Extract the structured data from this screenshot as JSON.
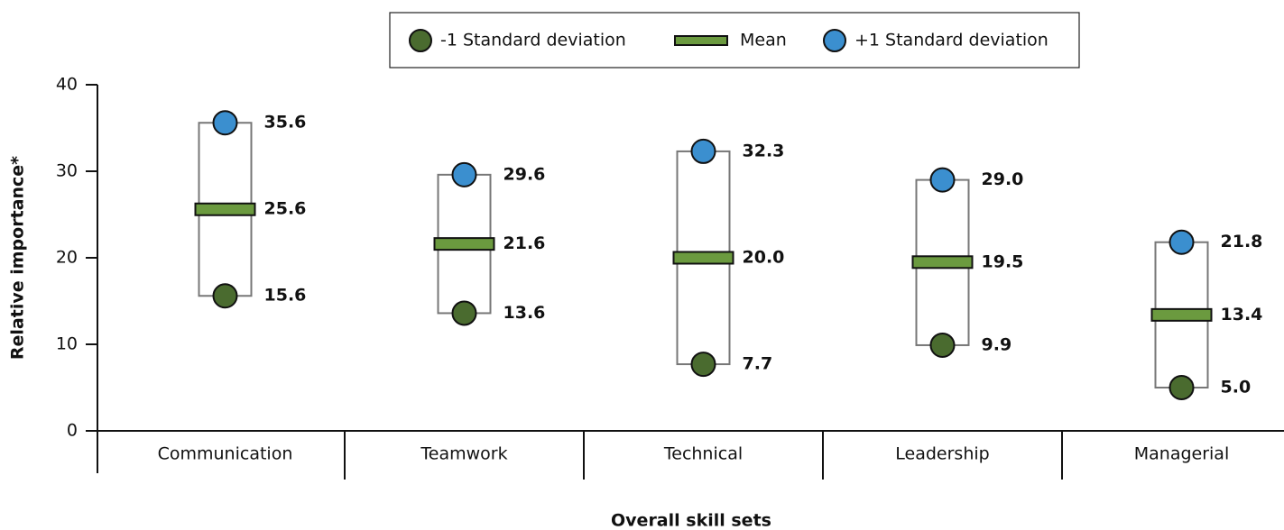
{
  "chart_data": {
    "type": "range",
    "y_label": "Relative importance*",
    "x_label": "Overall skill sets",
    "categories": [
      "Communication",
      "Teamwork",
      "Technical",
      "Leadership",
      "Managerial"
    ],
    "series": [
      {
        "name": "-1 Standard deviation",
        "color": "#4a6b2f",
        "values": [
          15.6,
          13.6,
          7.7,
          9.9,
          5.0
        ],
        "value_labels": [
          "15.6",
          "13.6",
          "7.7",
          "9.9",
          "5.0"
        ]
      },
      {
        "name": "Mean",
        "color": "#6b9a3f",
        "values": [
          25.6,
          21.6,
          20.0,
          19.5,
          13.4
        ],
        "value_labels": [
          "25.6",
          "21.6",
          "20.0",
          "19.5",
          "13.4"
        ]
      },
      {
        "name": "+1 Standard deviation",
        "color": "#3b8fcf",
        "values": [
          35.6,
          29.6,
          32.3,
          29.0,
          21.8
        ],
        "value_labels": [
          "35.6",
          "29.6",
          "32.3",
          "29.0",
          "21.8"
        ]
      }
    ],
    "ylim": [
      0,
      40
    ],
    "yticks": [
      0,
      10,
      20,
      30,
      40
    ]
  }
}
